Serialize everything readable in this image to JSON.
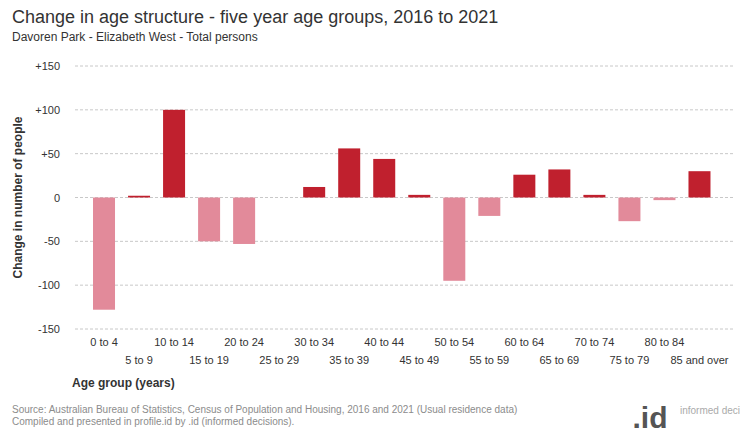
{
  "chart_data": {
    "type": "bar",
    "title": "Change in age structure - five year age groups, 2016 to 2021",
    "subtitle": "Davoren Park - Elizabeth West - Total persons",
    "x_label": "Age group (years)",
    "y_label": "Change in number of people",
    "categories": [
      "0 to 4",
      "5 to 9",
      "10 to 14",
      "15 to 19",
      "20 to 24",
      "25 to 29",
      "30 to 34",
      "35 to 39",
      "40 to 44",
      "45 to 49",
      "50 to 54",
      "55 to 59",
      "60 to 64",
      "65 to 69",
      "70 to 74",
      "75 to 79",
      "80 to 84",
      "85 and over"
    ],
    "values": [
      -128,
      2,
      100,
      -50,
      -53,
      0,
      12,
      56,
      44,
      3,
      -95,
      -21,
      26,
      32,
      3,
      -27,
      -3,
      30
    ],
    "colors": [
      "#e28a9a",
      "#c0202e",
      "#c0202e",
      "#e28a9a",
      "#e28a9a",
      "#c0202e",
      "#c0202e",
      "#c0202e",
      "#c0202e",
      "#c0202e",
      "#e28a9a",
      "#e28a9a",
      "#c0202e",
      "#c0202e",
      "#c0202e",
      "#e28a9a",
      "#e28a9a",
      "#c0202e"
    ],
    "ylim": [
      -150,
      150
    ],
    "yticks": [
      {
        "value": 150,
        "label": "+150"
      },
      {
        "value": 100,
        "label": "+100"
      },
      {
        "value": 50,
        "label": "+50"
      },
      0,
      -50,
      -100,
      -150
    ],
    "grid": true,
    "annotations": [
      "Source: Australian Bureau of Statistics, Census of Population and Housing, 2016 and 2021 (Usual residence data)",
      "Compiled and presented in profile.id by .id (informed decisions).",
      ".id",
      "informed decisions"
    ]
  }
}
